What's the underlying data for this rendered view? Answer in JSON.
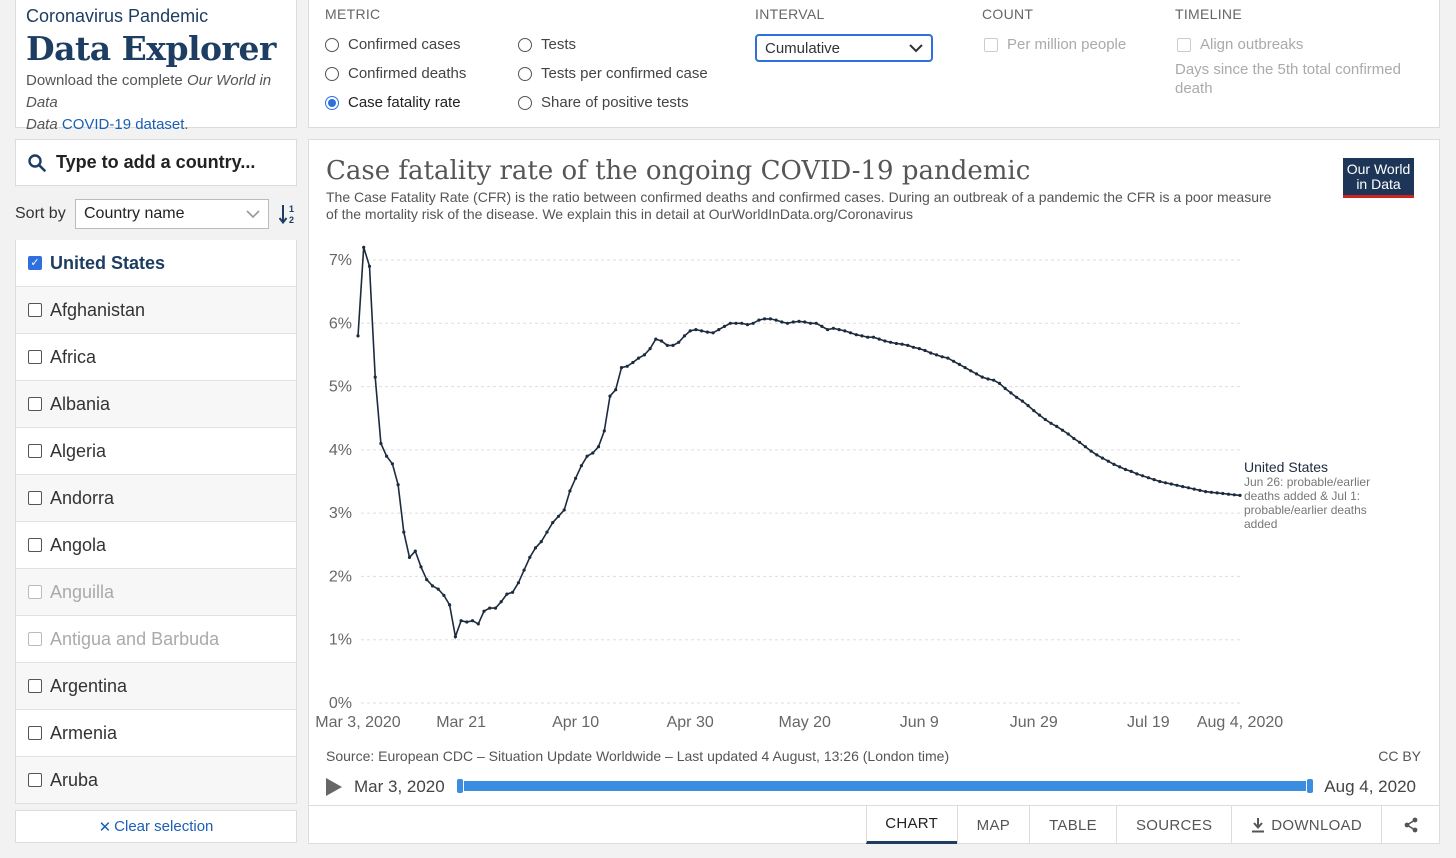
{
  "header": {
    "kicker": "Coronavirus Pandemic",
    "title": "Data Explorer",
    "download_prefix": "Download the complete ",
    "download_italic": "Our World in Data",
    "download_link": "COVID-19 dataset",
    "download_suffix": "."
  },
  "search": {
    "placeholder": "Type to add a country..."
  },
  "sort": {
    "label": "Sort by",
    "value": "Country name"
  },
  "countries": [
    {
      "name": "United States",
      "checked": true,
      "disabled": false
    },
    {
      "name": "Afghanistan",
      "checked": false,
      "disabled": false
    },
    {
      "name": "Africa",
      "checked": false,
      "disabled": false
    },
    {
      "name": "Albania",
      "checked": false,
      "disabled": false
    },
    {
      "name": "Algeria",
      "checked": false,
      "disabled": false
    },
    {
      "name": "Andorra",
      "checked": false,
      "disabled": false
    },
    {
      "name": "Angola",
      "checked": false,
      "disabled": false
    },
    {
      "name": "Anguilla",
      "checked": false,
      "disabled": true
    },
    {
      "name": "Antigua and Barbuda",
      "checked": false,
      "disabled": true
    },
    {
      "name": "Argentina",
      "checked": false,
      "disabled": false
    },
    {
      "name": "Armenia",
      "checked": false,
      "disabled": false
    },
    {
      "name": "Aruba",
      "checked": false,
      "disabled": false
    }
  ],
  "clear_selection": "Clear selection",
  "controls": {
    "metric": {
      "heading": "METRIC",
      "options": [
        "Confirmed cases",
        "Confirmed deaths",
        "Case fatality rate",
        "Tests",
        "Tests per confirmed case",
        "Share of positive tests"
      ],
      "selected": "Case fatality rate"
    },
    "interval": {
      "heading": "INTERVAL",
      "value": "Cumulative"
    },
    "count": {
      "heading": "COUNT",
      "per_million": "Per million people"
    },
    "timeline": {
      "heading": "TIMELINE",
      "align": "Align outbreaks",
      "hint": "Days since the 5th total confirmed death"
    }
  },
  "chart": {
    "title": "Case fatality rate of the ongoing COVID-19 pandemic",
    "subtitle": "The Case Fatality Rate (CFR) is the ratio between confirmed deaths and confirmed cases. During an outbreak of a pandemic the CFR is a poor measure of the mortality risk of the disease. We explain this in detail at OurWorldInData.org/Coronavirus",
    "logo_line1": "Our World",
    "logo_line2": "in Data",
    "source": "Source: European CDC – Situation Update Worldwide – Last updated 4 August, 13:26 (London time)",
    "license": "CC BY",
    "timeline_start": "Mar 3, 2020",
    "timeline_end": "Aug 4, 2020",
    "series_label": "United States",
    "series_note": [
      "Jun 26: probable/earlier",
      "deaths added & Jul 1:",
      "probable/earlier deaths",
      "added"
    ],
    "line_color": "#1d2b3e"
  },
  "chart_data": {
    "type": "line",
    "title": "Case fatality rate of the ongoing COVID-19 pandemic",
    "xlabel": "",
    "ylabel": "",
    "y_ticks": [
      "0%",
      "1%",
      "2%",
      "3%",
      "4%",
      "5%",
      "6%",
      "7%"
    ],
    "x_ticks": [
      "Mar 3, 2020",
      "Mar 21",
      "Apr 10",
      "Apr 30",
      "May 20",
      "Jun 9",
      "Jun 29",
      "Jul 19",
      "Aug 4, 2020"
    ],
    "x_tick_days": [
      0,
      18,
      38,
      58,
      78,
      98,
      118,
      138,
      154
    ],
    "ylim": [
      0,
      7
    ],
    "grid": "horizontal",
    "series": [
      {
        "name": "United States",
        "points": [
          [
            0,
            5.8
          ],
          [
            1,
            7.2
          ],
          [
            2,
            6.9
          ],
          [
            3,
            5.15
          ],
          [
            4,
            4.1
          ],
          [
            5,
            3.9
          ],
          [
            6,
            3.78
          ],
          [
            7,
            3.45
          ],
          [
            8,
            2.7
          ],
          [
            9,
            2.3
          ],
          [
            10,
            2.4
          ],
          [
            11,
            2.15
          ],
          [
            12,
            1.95
          ],
          [
            13,
            1.85
          ],
          [
            14,
            1.8
          ],
          [
            15,
            1.7
          ],
          [
            16,
            1.55
          ],
          [
            17,
            1.05
          ],
          [
            18,
            1.3
          ],
          [
            19,
            1.28
          ],
          [
            20,
            1.3
          ],
          [
            21,
            1.25
          ],
          [
            22,
            1.45
          ],
          [
            23,
            1.5
          ],
          [
            24,
            1.5
          ],
          [
            25,
            1.6
          ],
          [
            26,
            1.72
          ],
          [
            27,
            1.75
          ],
          [
            28,
            1.9
          ],
          [
            29,
            2.1
          ],
          [
            30,
            2.3
          ],
          [
            31,
            2.45
          ],
          [
            32,
            2.55
          ],
          [
            33,
            2.7
          ],
          [
            34,
            2.85
          ],
          [
            35,
            2.95
          ],
          [
            36,
            3.05
          ],
          [
            37,
            3.35
          ],
          [
            38,
            3.55
          ],
          [
            39,
            3.75
          ],
          [
            40,
            3.9
          ],
          [
            41,
            3.95
          ],
          [
            42,
            4.05
          ],
          [
            43,
            4.3
          ],
          [
            44,
            4.85
          ],
          [
            45,
            4.95
          ],
          [
            46,
            5.3
          ],
          [
            47,
            5.32
          ],
          [
            48,
            5.38
          ],
          [
            49,
            5.45
          ],
          [
            50,
            5.5
          ],
          [
            51,
            5.6
          ],
          [
            52,
            5.75
          ],
          [
            53,
            5.72
          ],
          [
            54,
            5.65
          ],
          [
            55,
            5.65
          ],
          [
            56,
            5.7
          ],
          [
            57,
            5.8
          ],
          [
            58,
            5.88
          ],
          [
            59,
            5.9
          ],
          [
            60,
            5.88
          ],
          [
            61,
            5.86
          ],
          [
            62,
            5.85
          ],
          [
            63,
            5.9
          ],
          [
            64,
            5.95
          ],
          [
            65,
            6.0
          ],
          [
            66,
            6.0
          ],
          [
            67,
            6.0
          ],
          [
            68,
            5.98
          ],
          [
            69,
            6.0
          ],
          [
            70,
            6.05
          ],
          [
            71,
            6.07
          ],
          [
            72,
            6.07
          ],
          [
            73,
            6.05
          ],
          [
            74,
            6.02
          ],
          [
            75,
            6.0
          ],
          [
            76,
            6.02
          ],
          [
            77,
            6.03
          ],
          [
            78,
            6.02
          ],
          [
            79,
            6.0
          ],
          [
            80,
            6.0
          ],
          [
            81,
            5.95
          ],
          [
            82,
            5.9
          ],
          [
            83,
            5.92
          ],
          [
            84,
            5.9
          ],
          [
            85,
            5.88
          ],
          [
            86,
            5.85
          ],
          [
            87,
            5.82
          ],
          [
            88,
            5.8
          ],
          [
            89,
            5.78
          ],
          [
            90,
            5.78
          ],
          [
            91,
            5.75
          ],
          [
            92,
            5.72
          ],
          [
            93,
            5.7
          ],
          [
            94,
            5.68
          ],
          [
            95,
            5.67
          ],
          [
            96,
            5.65
          ],
          [
            97,
            5.62
          ],
          [
            98,
            5.6
          ],
          [
            99,
            5.57
          ],
          [
            100,
            5.53
          ],
          [
            101,
            5.5
          ],
          [
            102,
            5.47
          ],
          [
            103,
            5.45
          ],
          [
            104,
            5.4
          ],
          [
            105,
            5.35
          ],
          [
            106,
            5.3
          ],
          [
            107,
            5.25
          ],
          [
            108,
            5.2
          ],
          [
            109,
            5.15
          ],
          [
            110,
            5.12
          ],
          [
            111,
            5.1
          ],
          [
            112,
            5.05
          ],
          [
            113,
            4.97
          ],
          [
            114,
            4.9
          ],
          [
            115,
            4.83
          ],
          [
            116,
            4.77
          ],
          [
            117,
            4.7
          ],
          [
            118,
            4.62
          ],
          [
            119,
            4.55
          ],
          [
            120,
            4.48
          ],
          [
            121,
            4.42
          ],
          [
            122,
            4.37
          ],
          [
            123,
            4.31
          ],
          [
            124,
            4.25
          ],
          [
            125,
            4.18
          ],
          [
            126,
            4.12
          ],
          [
            127,
            4.05
          ],
          [
            128,
            3.98
          ],
          [
            129,
            3.92
          ],
          [
            130,
            3.87
          ],
          [
            131,
            3.82
          ],
          [
            132,
            3.77
          ],
          [
            133,
            3.73
          ],
          [
            134,
            3.69
          ],
          [
            135,
            3.66
          ],
          [
            136,
            3.62
          ],
          [
            137,
            3.59
          ],
          [
            138,
            3.56
          ],
          [
            139,
            3.53
          ],
          [
            140,
            3.5
          ],
          [
            141,
            3.48
          ],
          [
            142,
            3.46
          ],
          [
            143,
            3.44
          ],
          [
            144,
            3.42
          ],
          [
            145,
            3.4
          ],
          [
            146,
            3.38
          ],
          [
            147,
            3.36
          ],
          [
            148,
            3.34
          ],
          [
            149,
            3.33
          ],
          [
            150,
            3.32
          ],
          [
            151,
            3.31
          ],
          [
            152,
            3.3
          ],
          [
            153,
            3.29
          ],
          [
            154,
            3.28
          ]
        ]
      }
    ]
  },
  "tabs": [
    "CHART",
    "MAP",
    "TABLE",
    "SOURCES",
    "DOWNLOAD"
  ],
  "active_tab": "CHART",
  "icons": {
    "search": "search-icon",
    "sort": "sort-alpha-icon",
    "play": "play-icon",
    "download": "download-icon",
    "share": "share-icon",
    "clear": "close-icon"
  }
}
